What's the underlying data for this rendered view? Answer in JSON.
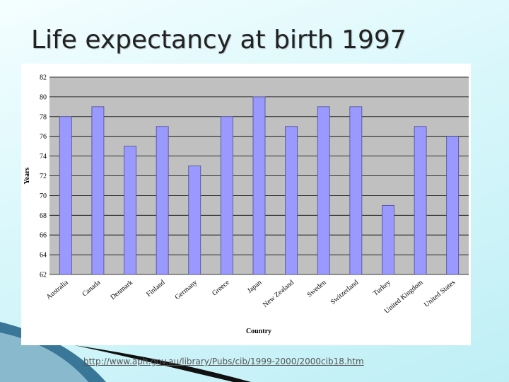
{
  "slide": {
    "title": "Life expectancy at birth 1997",
    "source_link": "http://www.aph.gov.au/library/Pubs/cib/1999-2000/2000cib18.htm"
  },
  "colors": {
    "plot_background": "#c0c0c0",
    "bar_fill": "#9999ff",
    "bar_stroke": "#4a4a8c",
    "gridline": "#000000"
  },
  "chart_data": {
    "type": "bar",
    "title": "",
    "xlabel": "Country",
    "ylabel": "Years",
    "ylim": [
      62,
      82
    ],
    "yticks": [
      62,
      64,
      66,
      68,
      70,
      72,
      74,
      76,
      78,
      80,
      82
    ],
    "grid": true,
    "legend": "none",
    "categories": [
      "Australia",
      "Canada",
      "Denmark",
      "Finland",
      "Germany",
      "Greece",
      "Japan",
      "New Zealand",
      "Sweden",
      "Switzerland",
      "Turkey",
      "United Kingdom",
      "United States"
    ],
    "values": [
      78,
      79,
      75,
      77,
      73,
      78,
      80,
      77,
      79,
      79,
      69,
      77,
      76
    ]
  }
}
